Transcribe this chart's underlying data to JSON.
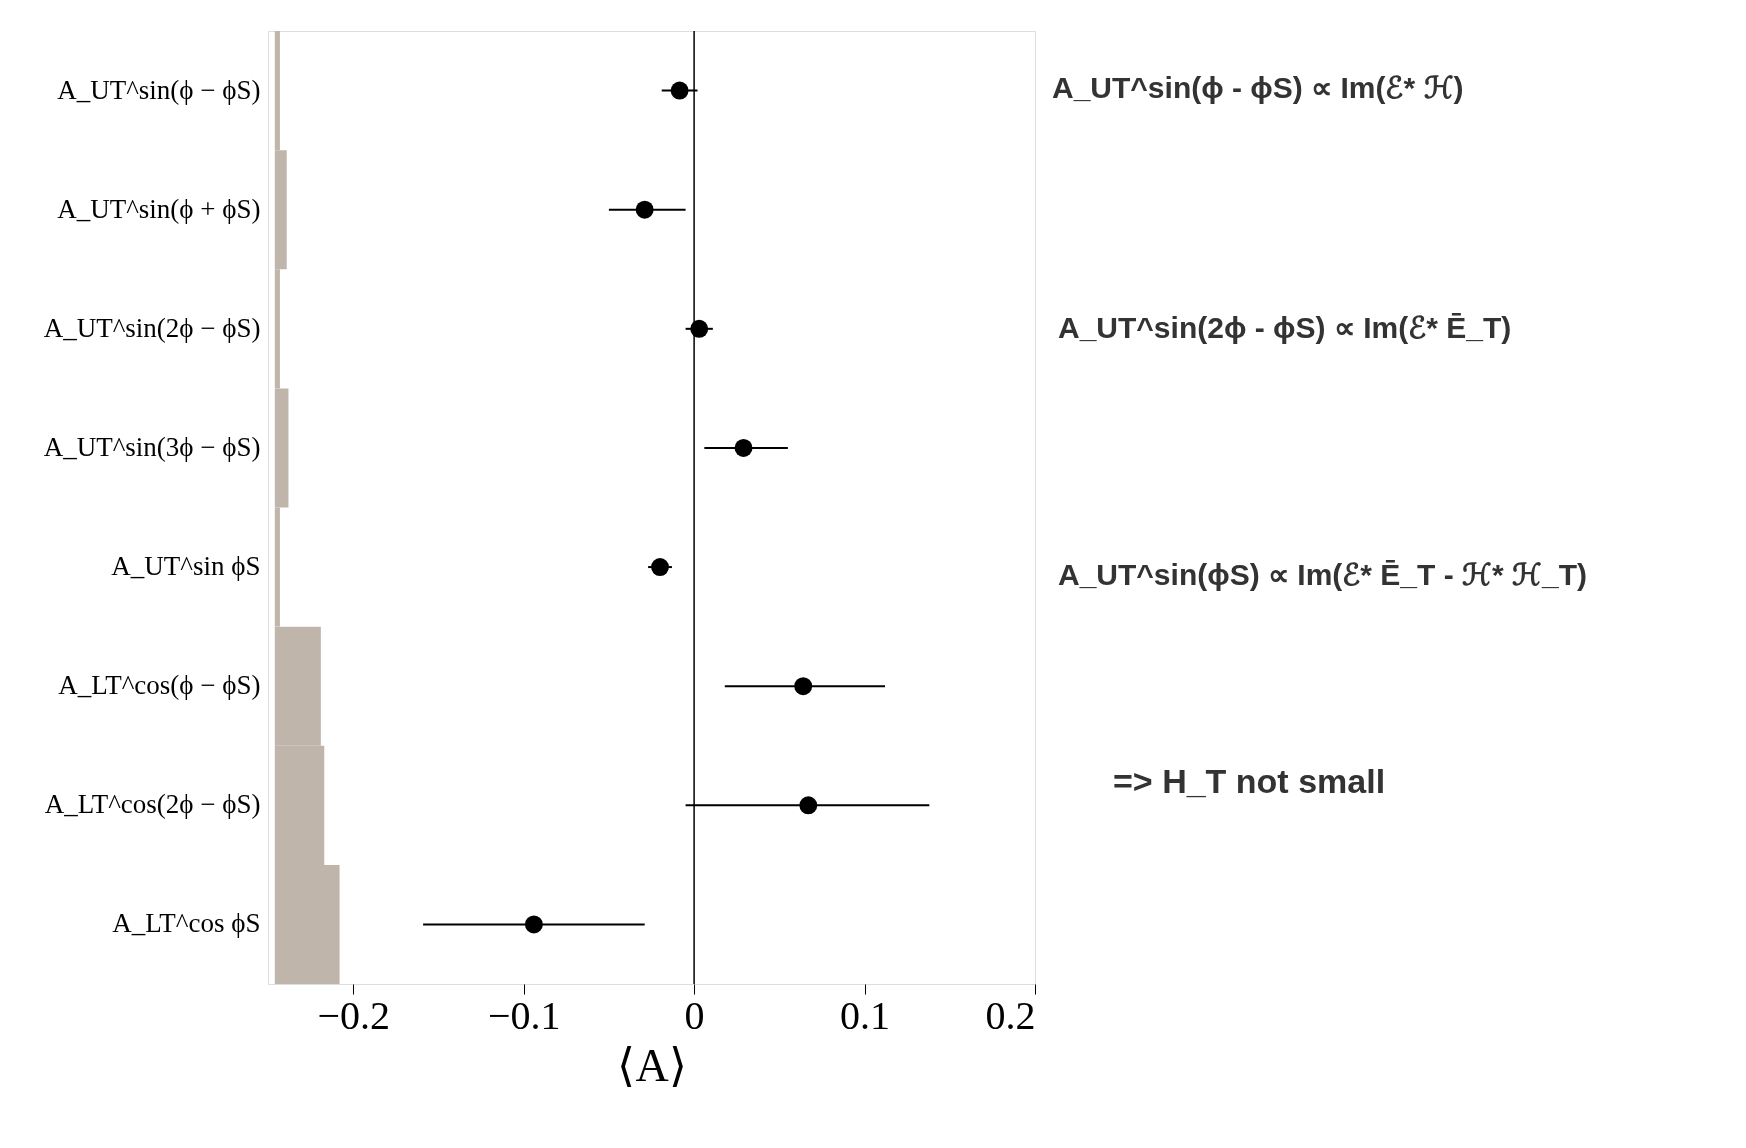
{
  "chart_data": {
    "type": "scatter",
    "orientation": "horizontal",
    "xlabel": "⟨A⟩",
    "categories": [
      "A_UT^sin(ϕ − ϕS)",
      "A_UT^sin(ϕ + ϕS)",
      "A_UT^sin(2ϕ − ϕS)",
      "A_UT^sin(3ϕ − ϕS)",
      "A_UT^sin ϕS",
      "A_LT^cos(ϕ − ϕS)",
      "A_LT^cos(2ϕ − ϕS)",
      "A_LT^cos ϕS"
    ],
    "series": [
      {
        "type": "bar",
        "color": "#bfb5ab",
        "base": [
          -0.246,
          -0.246,
          -0.246,
          -0.246,
          -0.246,
          -0.246,
          -0.246,
          -0.246
        ],
        "values": [
          0.003,
          0.007,
          0.003,
          0.008,
          0.003,
          0.027,
          0.029,
          0.038
        ]
      },
      {
        "type": "scatter",
        "color": "#000000",
        "values": [
          -0.0085,
          -0.029,
          0.003,
          0.029,
          -0.02,
          0.064,
          0.067,
          -0.094
        ],
        "errors": [
          [
            -0.019,
            0.002
          ],
          [
            -0.05,
            -0.005
          ],
          [
            -0.005,
            0.011
          ],
          [
            0.006,
            0.055
          ],
          [
            -0.027,
            -0.013
          ],
          [
            0.018,
            0.112
          ],
          [
            -0.005,
            0.138
          ],
          [
            -0.159,
            -0.029
          ]
        ]
      }
    ],
    "xlim": [
      -0.25,
      0.2
    ],
    "xticks": [
      {
        "value": -0.2,
        "label": "−0.2"
      },
      {
        "value": -0.1,
        "label": "−0.1"
      },
      0,
      0.1,
      0.2
    ],
    "ref_lines": [
      {
        "axis": "x",
        "value": 0,
        "color": "#000000"
      }
    ],
    "annotations": [
      "A_UT^sin(ϕ - ϕS) ∝ Im(ℰ* ℋ)",
      "A_UT^sin(2ϕ - ϕS) ∝ Im(ℰ* Ē_T)",
      "A_UT^sin(ϕS) ∝ Im(ℰ* Ē_T - ℋ* ℋ_T)",
      "=> H_T not small"
    ],
    "marker": "circle"
  }
}
